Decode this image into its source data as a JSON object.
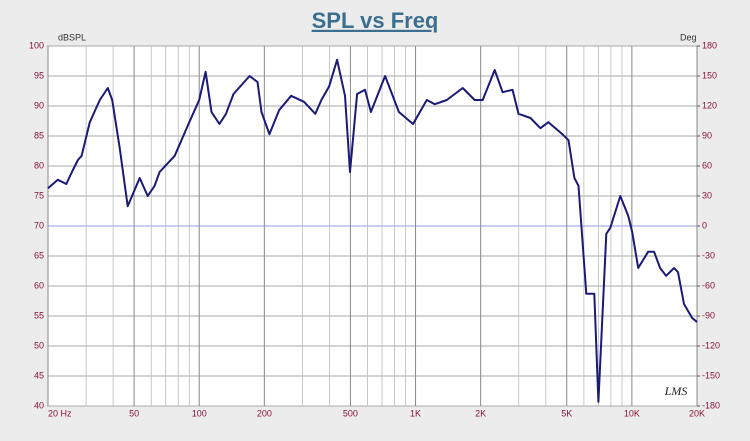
{
  "chart_data": {
    "type": "line",
    "title": "SPL vs Freq",
    "y_label": "dBSPL",
    "y2_label": "Deg",
    "watermark": "LMS",
    "log_x": true,
    "grid": true,
    "reference_value": 70,
    "xlim": [
      20,
      20000
    ],
    "xticks": [
      {
        "value": 20,
        "label": "20 Hz"
      },
      50,
      100,
      200,
      500,
      {
        "value": 1000,
        "label": "1K"
      },
      {
        "value": 2000,
        "label": "2K"
      },
      {
        "value": 5000,
        "label": "5K"
      },
      {
        "value": 10000,
        "label": "10K"
      },
      {
        "value": 20000,
        "label": "20K"
      }
    ],
    "xminor_ticks": [
      30,
      40,
      60,
      70,
      80,
      90,
      300,
      400,
      600,
      700,
      800,
      900,
      3000,
      4000,
      6000,
      7000,
      8000,
      9000
    ],
    "ylim": [
      40,
      100
    ],
    "yticks": [
      40,
      45,
      50,
      55,
      60,
      65,
      70,
      75,
      80,
      85,
      90,
      95,
      100
    ],
    "y2lim": [
      -180,
      180
    ],
    "y2ticks": [
      -180,
      -150,
      -120,
      -90,
      -60,
      -30,
      0,
      30,
      60,
      90,
      120,
      150,
      180
    ],
    "series": [
      {
        "name": "SPL",
        "color": "#1a1a78",
        "x": [
          20,
          22.2,
          24.3,
          25.8,
          27.5,
          28.6,
          31.2,
          34.7,
          37.8,
          39.6,
          42.9,
          46.7,
          53.1,
          57.8,
          62.2,
          65.6,
          77,
          90,
          100,
          107,
          114,
          124,
          133,
          144,
          171,
          186,
          194,
          211,
          234,
          266,
          305,
          344,
          367,
          399,
          434,
          472,
          498,
          537,
          584,
          622,
          723,
          838,
          973,
          1127,
          1228,
          1394,
          1652,
          1876,
          2043,
          2322,
          2525,
          2806,
          2993,
          3399,
          3778,
          4113,
          4775,
          5092,
          5423,
          5665,
          6157,
          6700,
          7000,
          7620,
          7950,
          8836,
          9620,
          10030,
          10700,
          11890,
          12670,
          13500,
          14390,
          15670,
          16340,
          17420,
          18970,
          20000
        ],
        "values": [
          76.3,
          77.7,
          77,
          79,
          81,
          81.7,
          87.3,
          91,
          93,
          91,
          83,
          73.3,
          78,
          75,
          76.7,
          79,
          81.7,
          87.3,
          91,
          95.7,
          89,
          87,
          88.7,
          92,
          95,
          94,
          89,
          85.3,
          89.3,
          91.7,
          90.7,
          88.7,
          91,
          93.3,
          97.7,
          91.7,
          79,
          92,
          92.7,
          89,
          95,
          89,
          87,
          91,
          90.3,
          91,
          93,
          91,
          91,
          96,
          92.3,
          92.7,
          88.7,
          88,
          86.3,
          87.3,
          85.3,
          84.3,
          78,
          76.7,
          58.7,
          58.7,
          40.7,
          68.7,
          69.7,
          75,
          71.7,
          69,
          63,
          65.7,
          65.7,
          63,
          61.7,
          63,
          62.3,
          57,
          54.7,
          54
        ]
      }
    ]
  }
}
